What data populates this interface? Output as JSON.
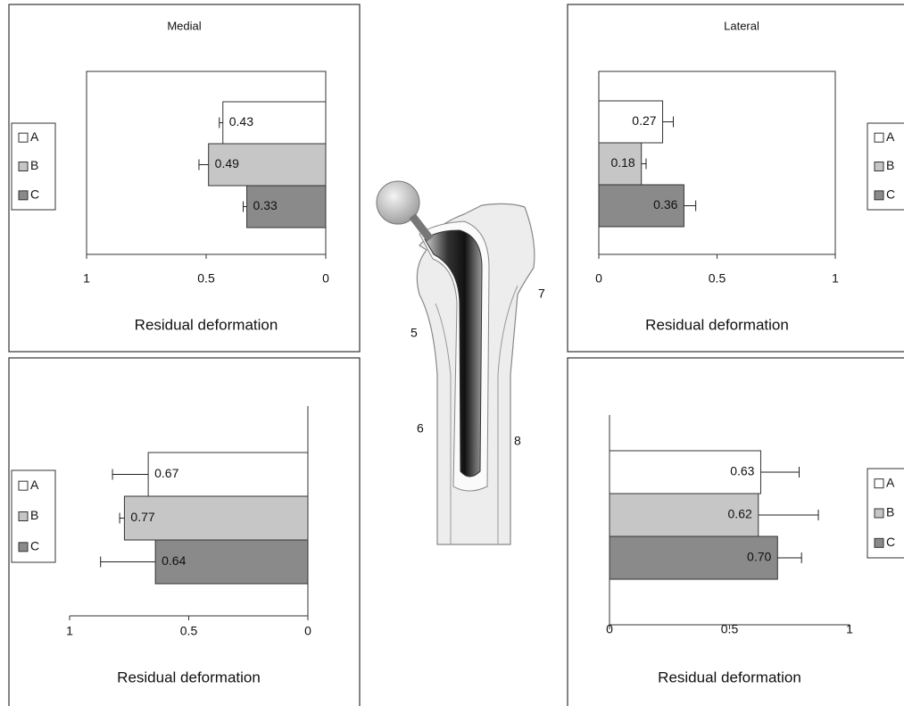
{
  "chart_data": [
    {
      "type": "bar",
      "orientation": "horizontal",
      "title": "Medial",
      "xlabel": "Residual deformation",
      "xlim": [
        1,
        0
      ],
      "xticks": [
        1,
        0.5,
        0
      ],
      "legend": "left",
      "series": [
        {
          "name": "A",
          "color": "#ffffff",
          "values": [
            0.43
          ],
          "errors": [
            0.015
          ]
        },
        {
          "name": "B",
          "color": "#c6c6c6",
          "values": [
            0.49
          ],
          "errors": [
            0.04
          ]
        },
        {
          "name": "C",
          "color": "#8a8a8a",
          "values": [
            0.33
          ],
          "errors": [
            0.015
          ]
        }
      ]
    },
    {
      "type": "bar",
      "orientation": "horizontal",
      "title": "Lateral",
      "xlabel": "Residual deformation",
      "xlim": [
        0,
        1
      ],
      "xticks": [
        0,
        0.5,
        1
      ],
      "legend": "right",
      "series": [
        {
          "name": "A",
          "color": "#ffffff",
          "values": [
            0.27
          ],
          "errors": [
            0.045
          ]
        },
        {
          "name": "B",
          "color": "#c6c6c6",
          "values": [
            0.18
          ],
          "errors": [
            0.02
          ]
        },
        {
          "name": "C",
          "color": "#8a8a8a",
          "values": [
            0.36
          ],
          "errors": [
            0.05
          ]
        }
      ]
    },
    {
      "type": "bar",
      "orientation": "horizontal",
      "xlabel": "Residual deformation",
      "xlim": [
        1,
        0
      ],
      "xticks": [
        1,
        0.5,
        0
      ],
      "legend": "left",
      "series": [
        {
          "name": "A",
          "color": "#ffffff",
          "values": [
            0.67
          ],
          "errors": [
            0.15
          ]
        },
        {
          "name": "B",
          "color": "#c6c6c6",
          "values": [
            0.77
          ],
          "errors": [
            0.02
          ]
        },
        {
          "name": "C",
          "color": "#8a8a8a",
          "values": [
            0.64
          ],
          "errors": [
            0.23
          ]
        }
      ]
    },
    {
      "type": "bar",
      "orientation": "horizontal",
      "xlabel": "Residual deformation",
      "xlim": [
        0,
        1
      ],
      "xticks": [
        0,
        0.5,
        1
      ],
      "legend": "right",
      "series": [
        {
          "name": "A",
          "color": "#ffffff",
          "values": [
            0.63
          ],
          "errors": [
            0.16
          ]
        },
        {
          "name": "B",
          "color": "#c6c6c6",
          "values": [
            0.62
          ],
          "errors": [
            0.25
          ]
        },
        {
          "name": "C",
          "color": "#8a8a8a",
          "values": [
            0.7
          ],
          "value_labels": [
            "0.70"
          ],
          "errors": [
            0.1
          ]
        }
      ]
    }
  ],
  "illustration": {
    "labels": [
      "5",
      "6",
      "7",
      "8"
    ]
  }
}
